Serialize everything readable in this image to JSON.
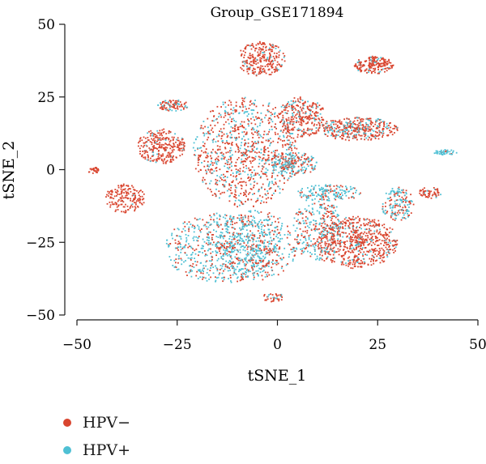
{
  "chart_data": {
    "type": "scatter",
    "title": "Group_GSE171894",
    "xlabel": "tSNE_1",
    "ylabel": "tSNE_2",
    "xlim": [
      -52,
      50
    ],
    "ylim": [
      -52,
      50
    ],
    "xticks": [
      -50,
      -25,
      0,
      25,
      50
    ],
    "yticks": [
      -50,
      -25,
      0,
      25,
      50
    ],
    "xtick_labels": [
      "−50",
      "−25",
      "0",
      "25",
      "50"
    ],
    "ytick_labels": [
      "−50",
      "−25",
      "0",
      "25",
      "50"
    ],
    "grid": false,
    "legend_position": "bottom-left",
    "series": [
      {
        "name": "HPV−",
        "color": "#d9452f"
      },
      {
        "name": "HPV+",
        "color": "#4fc0d4"
      }
    ],
    "clusters": [
      {
        "cx": -8,
        "cy": 6,
        "rx": 13,
        "ry": 19,
        "n": 950,
        "pos_frac": 0.3
      },
      {
        "cx": -4,
        "cy": 38,
        "rx": 6,
        "ry": 6,
        "n": 260,
        "pos_frac": 0.1
      },
      {
        "cx": 6,
        "cy": 18,
        "rx": 6,
        "ry": 7,
        "n": 300,
        "pos_frac": 0.25
      },
      {
        "cx": 20,
        "cy": 14,
        "rx": 10,
        "ry": 4,
        "n": 380,
        "pos_frac": 0.3
      },
      {
        "cx": 4,
        "cy": 2,
        "rx": 6,
        "ry": 4,
        "n": 200,
        "pos_frac": 0.6
      },
      {
        "cx": -29,
        "cy": 8,
        "rx": 6,
        "ry": 6,
        "n": 280,
        "pos_frac": 0.1
      },
      {
        "cx": -26,
        "cy": 22,
        "rx": 4,
        "ry": 2,
        "n": 90,
        "pos_frac": 0.3
      },
      {
        "cx": 24,
        "cy": 36,
        "rx": 5,
        "ry": 3,
        "n": 190,
        "pos_frac": 0.05
      },
      {
        "cx": 42,
        "cy": 6,
        "rx": 3,
        "ry": 1,
        "n": 45,
        "pos_frac": 0.9
      },
      {
        "cx": -38,
        "cy": -10,
        "rx": 5,
        "ry": 5,
        "n": 170,
        "pos_frac": 0.03
      },
      {
        "cx": -46,
        "cy": 0,
        "rx": 1.5,
        "ry": 1.5,
        "n": 30,
        "pos_frac": 0
      },
      {
        "cx": -14,
        "cy": -27,
        "rx": 14,
        "ry": 12,
        "n": 650,
        "pos_frac": 0.65
      },
      {
        "cx": -5,
        "cy": -26,
        "rx": 10,
        "ry": 12,
        "n": 420,
        "pos_frac": 0.6
      },
      {
        "cx": 20,
        "cy": -25,
        "rx": 10,
        "ry": 9,
        "n": 650,
        "pos_frac": 0.15
      },
      {
        "cx": 10,
        "cy": -20,
        "rx": 6,
        "ry": 12,
        "n": 300,
        "pos_frac": 0.55
      },
      {
        "cx": 30,
        "cy": -12,
        "rx": 4,
        "ry": 6,
        "n": 160,
        "pos_frac": 0.5
      },
      {
        "cx": 38,
        "cy": -8,
        "rx": 3,
        "ry": 2,
        "n": 60,
        "pos_frac": 0.1
      },
      {
        "cx": 13,
        "cy": -8,
        "rx": 8,
        "ry": 3,
        "n": 150,
        "pos_frac": 0.7
      },
      {
        "cx": -1,
        "cy": -44,
        "rx": 3,
        "ry": 1.5,
        "n": 35,
        "pos_frac": 0.2
      }
    ]
  },
  "legend": {
    "items": [
      {
        "label": "HPV−",
        "color": "#d9452f"
      },
      {
        "label": "HPV+",
        "color": "#4fc0d4"
      }
    ]
  }
}
